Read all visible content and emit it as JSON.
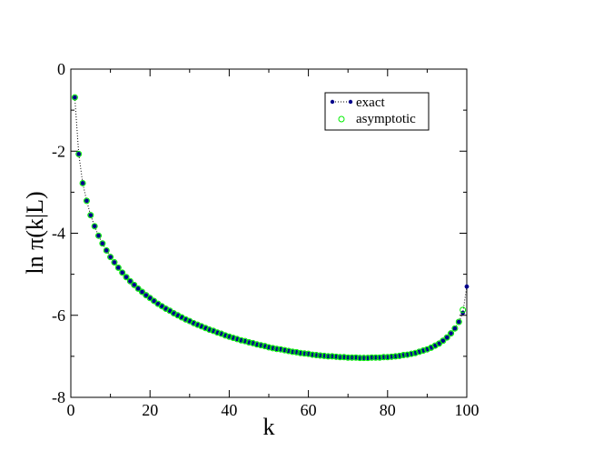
{
  "chart_data": {
    "type": "scatter",
    "xlabel": "k",
    "ylabel": "ln π(k|L)",
    "xlim": [
      0,
      100
    ],
    "ylim": [
      -8,
      0
    ],
    "xticks": [
      0,
      20,
      40,
      60,
      80,
      100
    ],
    "yticks": [
      0,
      -2,
      -4,
      -6,
      -8
    ],
    "x_tick_labels": [
      "0",
      "20",
      "40",
      "60",
      "80",
      "100"
    ],
    "y_tick_labels": [
      "0",
      "-2",
      "-4",
      "-6",
      "-8"
    ],
    "grid": false,
    "legend_position": "top-right",
    "series": [
      {
        "name": "exact",
        "style": "dotted-line-with-filled-circles",
        "color": "#00008b",
        "line_color": "#000000",
        "x": [
          1,
          2,
          3,
          4,
          5,
          6,
          7,
          8,
          9,
          10,
          11,
          12,
          13,
          14,
          15,
          16,
          17,
          18,
          19,
          20,
          21,
          22,
          23,
          24,
          25,
          26,
          27,
          28,
          29,
          30,
          31,
          32,
          33,
          34,
          35,
          36,
          37,
          38,
          39,
          40,
          41,
          42,
          43,
          44,
          45,
          46,
          47,
          48,
          49,
          50,
          51,
          52,
          53,
          54,
          55,
          56,
          57,
          58,
          59,
          60,
          61,
          62,
          63,
          64,
          65,
          66,
          67,
          68,
          69,
          70,
          71,
          72,
          73,
          74,
          75,
          76,
          77,
          78,
          79,
          80,
          81,
          82,
          83,
          84,
          85,
          86,
          87,
          88,
          89,
          90,
          91,
          92,
          93,
          94,
          95,
          96,
          97,
          98,
          99,
          100
        ],
        "y": [
          -0.69,
          -2.07,
          -2.78,
          -3.21,
          -3.56,
          -3.83,
          -4.06,
          -4.25,
          -4.42,
          -4.58,
          -4.71,
          -4.84,
          -4.96,
          -5.07,
          -5.17,
          -5.26,
          -5.35,
          -5.43,
          -5.51,
          -5.58,
          -5.65,
          -5.72,
          -5.78,
          -5.84,
          -5.89,
          -5.95,
          -6.0,
          -6.05,
          -6.1,
          -6.14,
          -6.19,
          -6.23,
          -6.27,
          -6.31,
          -6.35,
          -6.38,
          -6.42,
          -6.45,
          -6.49,
          -6.52,
          -6.55,
          -6.58,
          -6.61,
          -6.63,
          -6.66,
          -6.68,
          -6.71,
          -6.73,
          -6.75,
          -6.78,
          -6.8,
          -6.82,
          -6.83,
          -6.85,
          -6.87,
          -6.89,
          -6.9,
          -6.92,
          -6.93,
          -6.94,
          -6.96,
          -6.97,
          -6.98,
          -6.99,
          -7.0,
          -7.0,
          -7.01,
          -7.02,
          -7.02,
          -7.03,
          -7.03,
          -7.03,
          -7.04,
          -7.04,
          -7.04,
          -7.03,
          -7.03,
          -7.03,
          -7.02,
          -7.02,
          -7.01,
          -7.0,
          -6.99,
          -6.97,
          -6.96,
          -6.94,
          -6.92,
          -6.89,
          -6.86,
          -6.83,
          -6.79,
          -6.74,
          -6.69,
          -6.62,
          -6.54,
          -6.44,
          -6.32,
          -6.16,
          -5.94,
          -5.3
        ]
      },
      {
        "name": "asymptotic",
        "style": "open-circles",
        "color": "#00ee00",
        "x": [
          1,
          2,
          3,
          4,
          5,
          6,
          7,
          8,
          9,
          10,
          11,
          12,
          13,
          14,
          15,
          16,
          17,
          18,
          19,
          20,
          21,
          22,
          23,
          24,
          25,
          26,
          27,
          28,
          29,
          30,
          31,
          32,
          33,
          34,
          35,
          36,
          37,
          38,
          39,
          40,
          41,
          42,
          43,
          44,
          45,
          46,
          47,
          48,
          49,
          50,
          51,
          52,
          53,
          54,
          55,
          56,
          57,
          58,
          59,
          60,
          61,
          62,
          63,
          64,
          65,
          66,
          67,
          68,
          69,
          70,
          71,
          72,
          73,
          74,
          75,
          76,
          77,
          78,
          79,
          80,
          81,
          82,
          83,
          84,
          85,
          86,
          87,
          88,
          89,
          90,
          91,
          92,
          93,
          94,
          95,
          96,
          97,
          98,
          99
        ],
        "y": [
          -0.69,
          -2.07,
          -2.78,
          -3.21,
          -3.56,
          -3.83,
          -4.06,
          -4.25,
          -4.42,
          -4.58,
          -4.71,
          -4.84,
          -4.96,
          -5.07,
          -5.17,
          -5.26,
          -5.35,
          -5.43,
          -5.51,
          -5.58,
          -5.65,
          -5.72,
          -5.78,
          -5.84,
          -5.89,
          -5.95,
          -6.0,
          -6.05,
          -6.1,
          -6.14,
          -6.19,
          -6.23,
          -6.27,
          -6.31,
          -6.35,
          -6.38,
          -6.42,
          -6.45,
          -6.49,
          -6.52,
          -6.55,
          -6.58,
          -6.61,
          -6.63,
          -6.66,
          -6.68,
          -6.71,
          -6.73,
          -6.75,
          -6.78,
          -6.8,
          -6.82,
          -6.83,
          -6.85,
          -6.87,
          -6.89,
          -6.9,
          -6.92,
          -6.93,
          -6.94,
          -6.96,
          -6.97,
          -6.98,
          -6.99,
          -7.0,
          -7.0,
          -7.01,
          -7.02,
          -7.02,
          -7.03,
          -7.03,
          -7.03,
          -7.04,
          -7.04,
          -7.04,
          -7.03,
          -7.03,
          -7.03,
          -7.02,
          -7.02,
          -7.01,
          -7.0,
          -6.99,
          -6.97,
          -6.96,
          -6.94,
          -6.92,
          -6.89,
          -6.86,
          -6.83,
          -6.79,
          -6.74,
          -6.69,
          -6.62,
          -6.54,
          -6.44,
          -6.32,
          -6.16,
          -5.87
        ]
      }
    ]
  }
}
